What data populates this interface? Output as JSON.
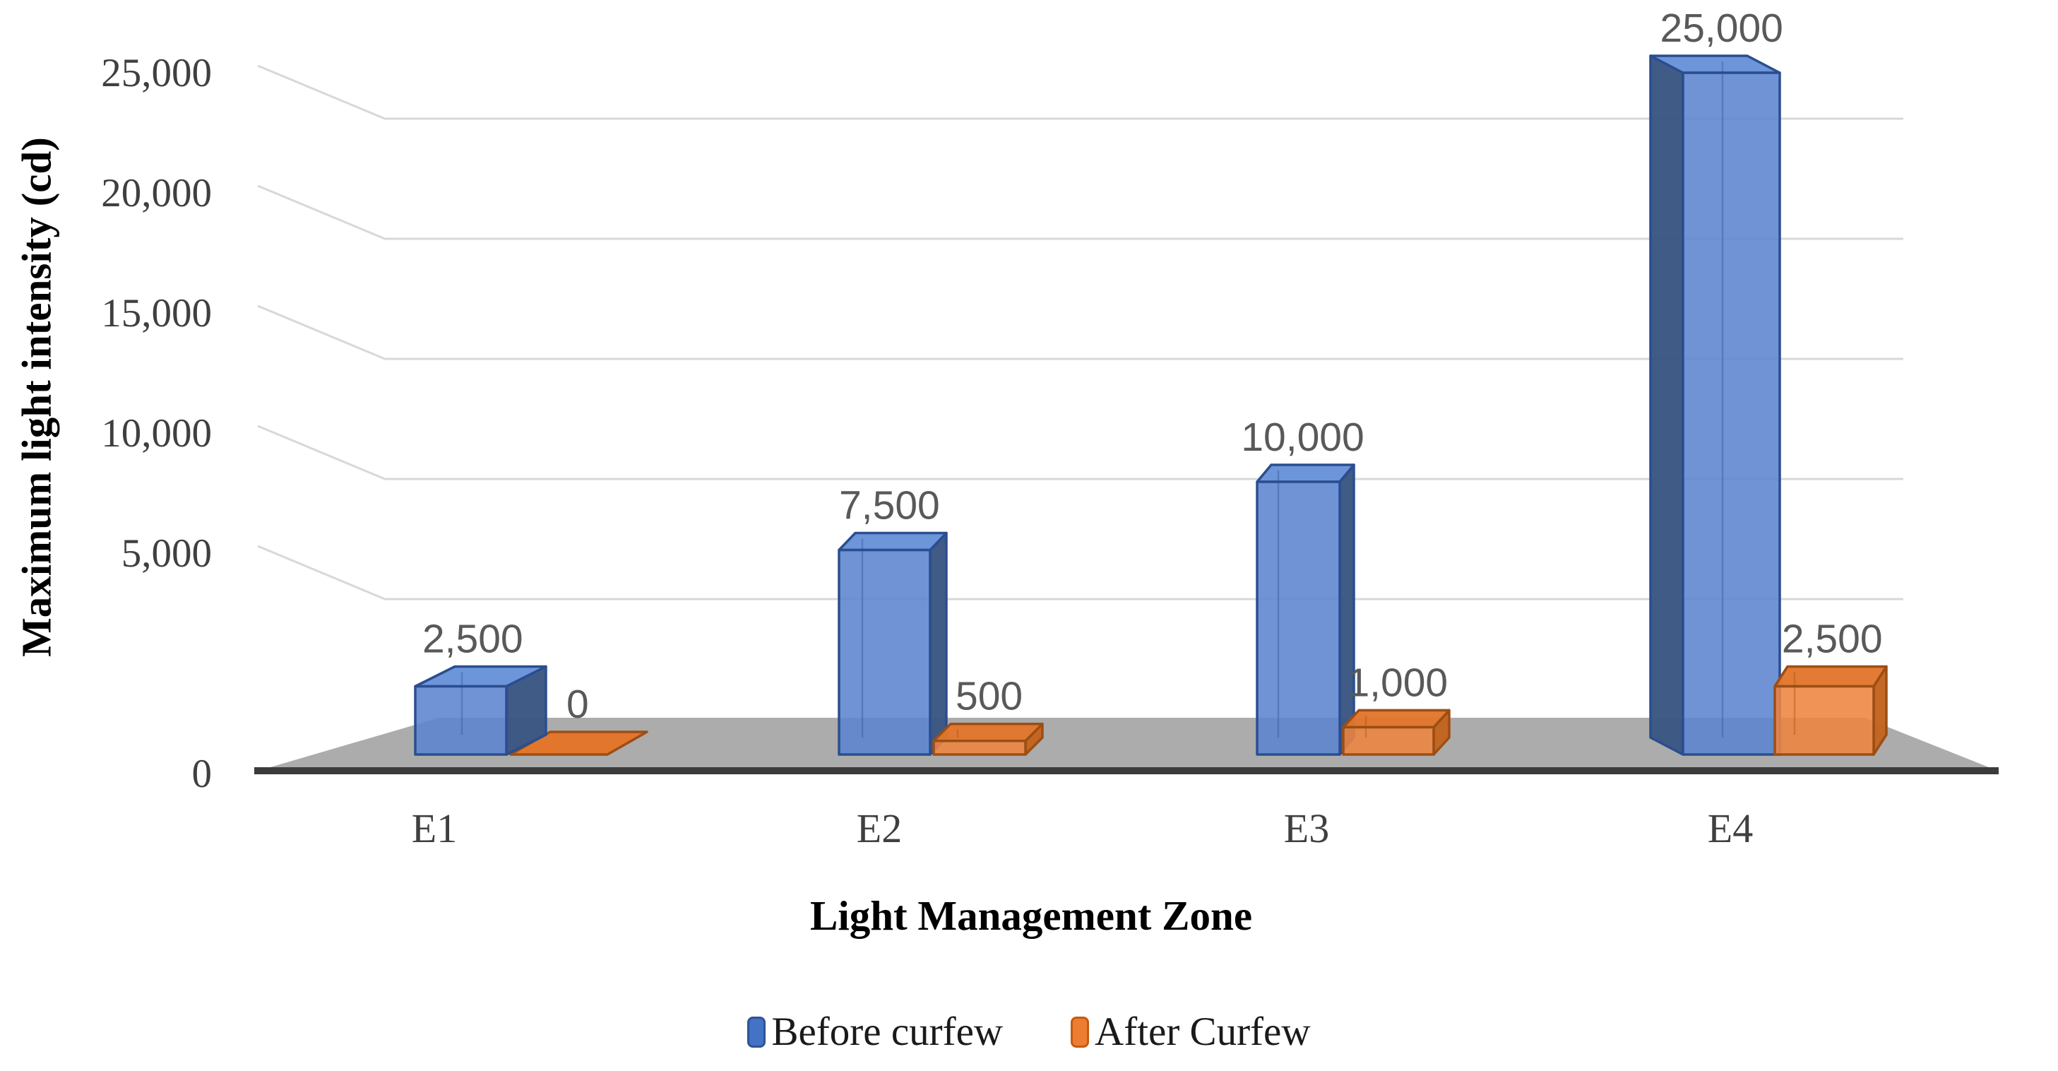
{
  "chart_data": {
    "type": "bar",
    "style_3d": true,
    "title": "",
    "categories": [
      "E1",
      "E2",
      "E3",
      "E4"
    ],
    "series": [
      {
        "name": "Before curfew",
        "color": "#4472C4",
        "border_color": "#2F5496",
        "values": [
          2500,
          7500,
          10000,
          25000
        ],
        "labels": [
          "2,500",
          "7,500",
          "10,000",
          "25,000"
        ]
      },
      {
        "name": "After Curfew",
        "color": "#ED7D31",
        "border_color": "#C55A11",
        "values": [
          0,
          500,
          1000,
          2500
        ],
        "labels": [
          "0",
          "500",
          "1,000",
          "2,500"
        ]
      }
    ],
    "xlabel": "Light Management Zone",
    "ylabel": "Maximum light intensity (cd)",
    "ylim": [
      0,
      25000
    ],
    "ytick_interval": 5000,
    "yticks": [
      "0",
      "5,000",
      "10,000",
      "15,000",
      "20,000",
      "25,000"
    ],
    "grid": "horizontal",
    "legend_position": "bottom",
    "data_labels_visible": true,
    "floor_color": "#ACACAC",
    "gridline_color": "#D8D8D8"
  }
}
